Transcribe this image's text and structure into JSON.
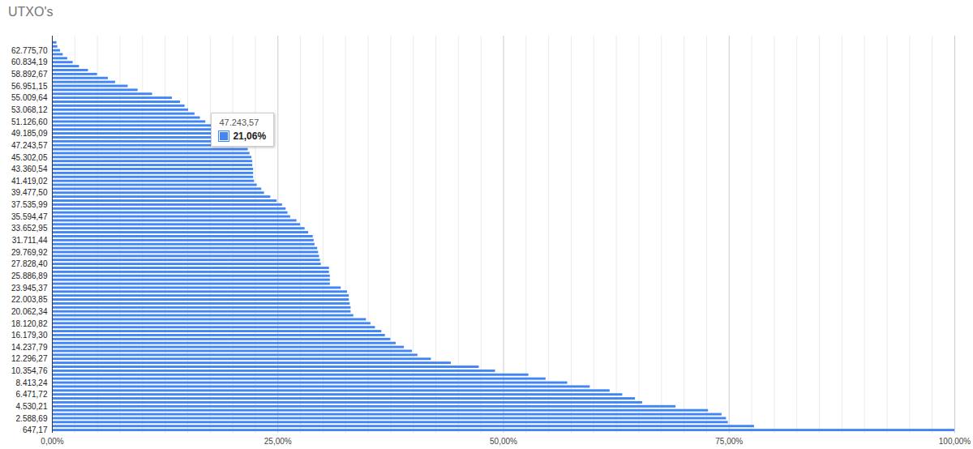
{
  "chart_data": {
    "type": "bar",
    "title": "UTXO's",
    "orientation": "horizontal",
    "grid": true,
    "color": "#4285f4",
    "categories": [
      null,
      null,
      null,
      "62.775,70",
      null,
      null,
      "60.834,19",
      null,
      null,
      "58.892,67",
      null,
      null,
      "56.951,15",
      null,
      null,
      "55.009,64",
      null,
      null,
      "53.068,12",
      null,
      null,
      "51.126,60",
      null,
      null,
      "49.185,09",
      null,
      null,
      "47.243,57",
      null,
      null,
      "45.302,05",
      null,
      null,
      "43.360,54",
      null,
      null,
      "41.419,02",
      null,
      null,
      "39.477,50",
      null,
      null,
      "37.535,99",
      null,
      null,
      "35.594,47",
      null,
      null,
      "33.652,95",
      null,
      null,
      "31.711,44",
      null,
      null,
      "29.769,92",
      null,
      null,
      "27.828,40",
      null,
      null,
      "25.886,89",
      null,
      null,
      "23.945,37",
      null,
      null,
      "22.003,85",
      null,
      null,
      "20.062,34",
      null,
      null,
      "18.120,82",
      null,
      null,
      "16.179,30",
      null,
      null,
      "14.237,79",
      null,
      null,
      "12.296,27",
      null,
      null,
      "10.354,76",
      null,
      null,
      "8.413,24",
      null,
      null,
      "6.471,72",
      null,
      null,
      "4.530,21",
      null,
      null,
      "2.588,69",
      null,
      null,
      "647,17"
    ],
    "values": [
      0.1,
      0.5,
      0.6,
      0.9,
      1.2,
      1.7,
      2.3,
      3.0,
      4.0,
      5.0,
      6.2,
      7.0,
      8.4,
      9.5,
      11.1,
      13.3,
      14.2,
      14.7,
      15.1,
      15.8,
      16.4,
      17.0,
      18.2,
      19.0,
      19.7,
      20.2,
      20.5,
      21.06,
      21.7,
      21.9,
      22.1,
      22.2,
      22.2,
      22.3,
      22.3,
      22.3,
      22.4,
      22.7,
      23.2,
      23.5,
      24.2,
      24.9,
      25.5,
      25.9,
      26.1,
      26.4,
      27.1,
      27.5,
      28.0,
      28.4,
      28.9,
      29.0,
      29.1,
      29.4,
      29.5,
      29.6,
      29.7,
      29.8,
      30.7,
      30.7,
      30.8,
      30.8,
      30.8,
      32.0,
      32.7,
      32.9,
      32.9,
      33.0,
      33.1,
      33.1,
      33.4,
      34.8,
      35.3,
      35.8,
      36.5,
      36.9,
      37.5,
      38.1,
      39.0,
      39.9,
      40.5,
      42.0,
      44.2,
      47.3,
      49.1,
      52.8,
      54.7,
      57.1,
      59.6,
      61.8,
      63.2,
      64.6,
      65.4,
      69.1,
      72.7,
      74.2,
      74.7,
      74.9,
      77.8,
      100
    ],
    "xlim": [
      0,
      100
    ],
    "xticks": [
      {
        "value": 0,
        "label": "0,00%"
      },
      {
        "value": 25,
        "label": "25,00%"
      },
      {
        "value": 50,
        "label": "50,00%"
      },
      {
        "value": 75,
        "label": "75,00%"
      },
      {
        "value": 100,
        "label": "100,00%"
      }
    ],
    "tooltip": {
      "category": "47.243,57",
      "value": 21.06,
      "value_label": "21,06%"
    }
  }
}
